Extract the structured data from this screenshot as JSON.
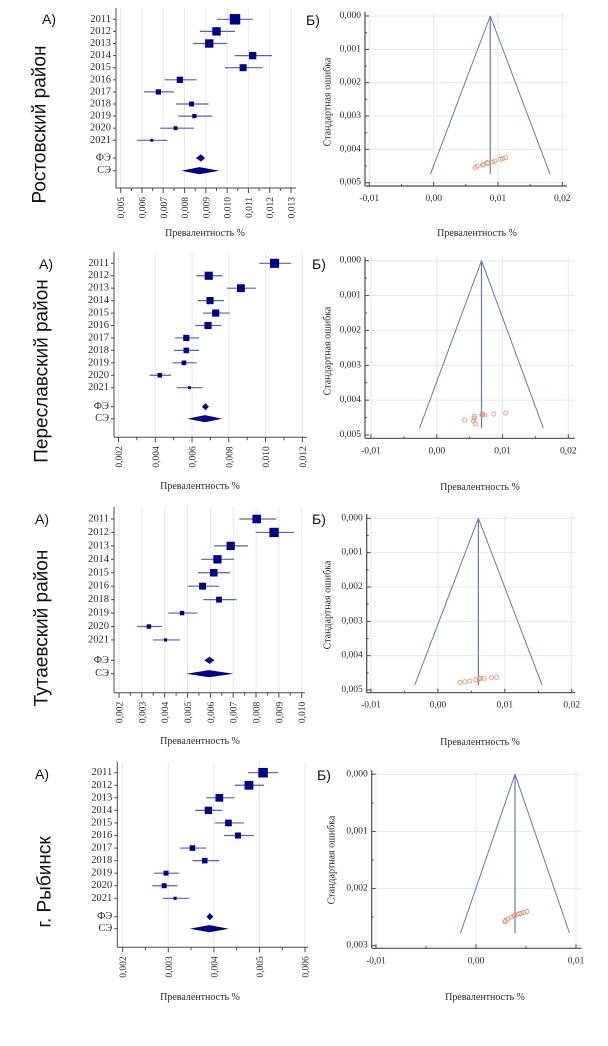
{
  "panels": [
    {
      "region_label": "Ростовский район",
      "label_a": "А)",
      "label_b": "Б)"
    },
    {
      "region_label": "Переславский район",
      "label_a": "А)",
      "label_b": "Б)"
    },
    {
      "region_label": "Тутаевский район",
      "label_a": "А)",
      "label_b": "Б)"
    },
    {
      "region_label": "г. Рыбинск",
      "label_a": "А)",
      "label_b": "Б)"
    }
  ],
  "colors": {
    "marker": "#00008c",
    "ci_line": "#5565a5",
    "funnel_line": "#6a78ad",
    "funnel_point": "#e29878",
    "grid": "#e6e7ee",
    "axis": "#4a4a4a"
  },
  "chart_data": [
    {
      "type": "scatter",
      "kind": "forest",
      "title": "",
      "xlabel": "Превалентность %",
      "ylabel": "",
      "xlim": [
        0.005,
        0.013
      ],
      "xticks": [
        0.005,
        0.006,
        0.007,
        0.008,
        0.009,
        0.01,
        0.011,
        0.012,
        0.013
      ],
      "xtick_labels": [
        "0,005",
        "0,006",
        "0,007",
        "0,008",
        "0,009",
        "0,010",
        "0,011",
        "0,012",
        "0,013"
      ],
      "grid": "vertical",
      "studies": [
        {
          "label": "2011",
          "estimate": 0.01037,
          "ci_low": 0.00952,
          "ci_high": 0.0112,
          "weight_pct": 22.7
        },
        {
          "label": "2012",
          "estimate": 0.0095,
          "ci_low": 0.00872,
          "ci_high": 0.01037,
          "weight_pct": 14.5
        },
        {
          "label": "2013",
          "estimate": 0.00916,
          "ci_low": 0.0084,
          "ci_high": 0.01,
          "weight_pct": 14.5
        },
        {
          "label": "2014",
          "estimate": 0.0112,
          "ci_low": 0.01035,
          "ci_high": 0.0121,
          "weight_pct": 11.1
        },
        {
          "label": "2015",
          "estimate": 0.01075,
          "ci_low": 0.0099,
          "ci_high": 0.01167,
          "weight_pct": 10.2
        },
        {
          "label": "2016",
          "estimate": 0.00778,
          "ci_low": 0.00706,
          "ci_high": 0.00857,
          "weight_pct": 8.2
        },
        {
          "label": "2017",
          "estimate": 0.00677,
          "ci_low": 0.0061,
          "ci_high": 0.0075,
          "weight_pct": 5.7
        },
        {
          "label": "2018",
          "estimate": 0.00833,
          "ci_low": 0.0076,
          "ci_high": 0.00913,
          "weight_pct": 5.0
        },
        {
          "label": "2019",
          "estimate": 0.00846,
          "ci_low": 0.0077,
          "ci_high": 0.00929,
          "weight_pct": 3.6
        },
        {
          "label": "2020",
          "estimate": 0.00758,
          "ci_low": 0.00686,
          "ci_high": 0.00844,
          "weight_pct": 3.1
        },
        {
          "label": "2021",
          "estimate": 0.00646,
          "ci_low": 0.00577,
          "ci_high": 0.00719,
          "weight_pct": 1.7
        }
      ],
      "pooled": [
        {
          "label": "ФЭ",
          "model": "fixed",
          "estimate": 0.00877,
          "ci_low": 0.00853,
          "ci_high": 0.00896
        },
        {
          "label": "СЭ",
          "model": "random",
          "estimate": 0.0087,
          "ci_low": 0.00785,
          "ci_high": 0.00963
        }
      ]
    },
    {
      "type": "scatter",
      "kind": "funnel",
      "title": "",
      "xlabel": "Превалентность %",
      "ylabel": "Стандартная ошибка",
      "xlim": [
        -0.01,
        0.02
      ],
      "ylim": [
        0,
        0.005
      ],
      "y_inverted": true,
      "xticks": [
        -0.01,
        0.0,
        0.01,
        0.02
      ],
      "xtick_labels": [
        "-0,01",
        "0,00",
        "0,01",
        "0,02"
      ],
      "yticks": [
        0,
        0.001,
        0.002,
        0.003,
        0.004,
        0.005
      ],
      "ytick_labels": [
        "0,000",
        "0,001",
        "0,002",
        "0,003",
        "0,004",
        "0,005"
      ],
      "grid": "both",
      "pooled_estimate": 0.0088,
      "se_max": 0.00474,
      "z": 1.96,
      "points": [
        {
          "label": "2011",
          "x": 0.01037,
          "se": 0.0043
        },
        {
          "label": "2012",
          "x": 0.0095,
          "se": 0.00435
        },
        {
          "label": "2013",
          "x": 0.00916,
          "se": 0.00438
        },
        {
          "label": "2014",
          "x": 0.0112,
          "se": 0.00425
        },
        {
          "label": "2015",
          "x": 0.01075,
          "se": 0.00428
        },
        {
          "label": "2016",
          "x": 0.00778,
          "se": 0.00445
        },
        {
          "label": "2017",
          "x": 0.00677,
          "se": 0.0045
        },
        {
          "label": "2018",
          "x": 0.00833,
          "se": 0.0044
        },
        {
          "label": "2019",
          "x": 0.00846,
          "se": 0.00442
        },
        {
          "label": "2020",
          "x": 0.00758,
          "se": 0.00447
        },
        {
          "label": "2021",
          "x": 0.00646,
          "se": 0.00455
        }
      ]
    },
    {
      "type": "scatter",
      "kind": "forest",
      "title": "",
      "xlabel": "Превалентность %",
      "ylabel": "",
      "xlim": [
        0.002,
        0.012
      ],
      "xticks": [
        0.002,
        0.004,
        0.006,
        0.008,
        0.01,
        0.012
      ],
      "xtick_labels": [
        "0,002",
        "0,004",
        "0,006",
        "0,008",
        "0,010",
        "0,012"
      ],
      "grid": "vertical",
      "studies": [
        {
          "label": "2011",
          "estimate": 0.01049,
          "ci_low": 0.00966,
          "ci_high": 0.01138,
          "weight_pct": 17.2
        },
        {
          "label": "2012",
          "estimate": 0.00691,
          "ci_low": 0.00624,
          "ci_high": 0.00766,
          "weight_pct": 13.7
        },
        {
          "label": "2013",
          "estimate": 0.00866,
          "ci_low": 0.00789,
          "ci_high": 0.00947,
          "weight_pct": 12.7
        },
        {
          "label": "2014",
          "estimate": 0.00698,
          "ci_low": 0.00631,
          "ci_high": 0.00773,
          "weight_pct": 10.6
        },
        {
          "label": "2015",
          "estimate": 0.00729,
          "ci_low": 0.0066,
          "ci_high": 0.00806,
          "weight_pct": 10.6
        },
        {
          "label": "2016",
          "estimate": 0.00687,
          "ci_low": 0.00618,
          "ci_high": 0.0076,
          "weight_pct": 10.6
        },
        {
          "label": "2017",
          "estimate": 0.00569,
          "ci_low": 0.00507,
          "ci_high": 0.00638,
          "weight_pct": 7.9
        },
        {
          "label": "2018",
          "estimate": 0.00569,
          "ci_low": 0.00502,
          "ci_high": 0.00638,
          "weight_pct": 6.5
        },
        {
          "label": "2019",
          "estimate": 0.00556,
          "ci_low": 0.00493,
          "ci_high": 0.00625,
          "weight_pct": 4.4
        },
        {
          "label": "2020",
          "estimate": 0.00425,
          "ci_low": 0.00369,
          "ci_high": 0.00487,
          "weight_pct": 4.4
        },
        {
          "label": "2021",
          "estimate": 0.00586,
          "ci_low": 0.00518,
          "ci_high": 0.00658,
          "weight_pct": 1.8
        }
      ],
      "pooled": [
        {
          "label": "ФЭ",
          "model": "fixed",
          "estimate": 0.00673,
          "ci_low": 0.00654,
          "ci_high": 0.00692
        },
        {
          "label": "СЭ",
          "model": "random",
          "estimate": 0.0067,
          "ci_low": 0.00575,
          "ci_high": 0.00764
        }
      ]
    },
    {
      "type": "scatter",
      "kind": "funnel",
      "title": "",
      "xlabel": "Превалентность %",
      "ylabel": "Стандартная ошибка",
      "xlim": [
        -0.01,
        0.02
      ],
      "ylim": [
        0,
        0.005
      ],
      "y_inverted": true,
      "xticks": [
        -0.01,
        0.0,
        0.01,
        0.02
      ],
      "xtick_labels": [
        "-0,01",
        "0,00",
        "0,01",
        "0,02"
      ],
      "yticks": [
        0,
        0.001,
        0.002,
        0.003,
        0.004,
        0.005
      ],
      "ytick_labels": [
        "0,000",
        "0,001",
        "0,002",
        "0,003",
        "0,004",
        "0,005"
      ],
      "grid": "both",
      "pooled_estimate": 0.0068,
      "se_max": 0.0048,
      "z": 1.96,
      "points": [
        {
          "label": "2011",
          "x": 0.01049,
          "se": 0.00437
        },
        {
          "label": "2012",
          "x": 0.00691,
          "se": 0.0044
        },
        {
          "label": "2013",
          "x": 0.00866,
          "se": 0.0044
        },
        {
          "label": "2014",
          "x": 0.00698,
          "se": 0.00441
        },
        {
          "label": "2015",
          "x": 0.00729,
          "se": 0.00443
        },
        {
          "label": "2016",
          "x": 0.00687,
          "se": 0.00442
        },
        {
          "label": "2017",
          "x": 0.00569,
          "se": 0.00447
        },
        {
          "label": "2018",
          "x": 0.00569,
          "se": 0.00452
        },
        {
          "label": "2019",
          "x": 0.00556,
          "se": 0.0046
        },
        {
          "label": "2020",
          "x": 0.00425,
          "se": 0.00457
        },
        {
          "label": "2021",
          "x": 0.00586,
          "se": 0.00468
        }
      ]
    },
    {
      "type": "scatter",
      "kind": "forest",
      "title": "",
      "xlabel": "Превалентность %",
      "ylabel": "",
      "xlim": [
        0.002,
        0.01
      ],
      "xticks": [
        0.002,
        0.003,
        0.004,
        0.005,
        0.006,
        0.007,
        0.008,
        0.009,
        0.01
      ],
      "xtick_labels": [
        "0,002",
        "0,003",
        "0,004",
        "0,005",
        "0,006",
        "0,007",
        "0,008",
        "0,009",
        "0,010"
      ],
      "grid": "vertical",
      "studies": [
        {
          "label": "2011",
          "estimate": 0.00803,
          "ci_low": 0.00727,
          "ci_high": 0.00888,
          "weight_pct": 15.2
        },
        {
          "label": "2012",
          "estimate": 0.00879,
          "ci_low": 0.00799,
          "ci_high": 0.00967,
          "weight_pct": 17.8
        },
        {
          "label": "2013",
          "estimate": 0.00689,
          "ci_low": 0.00616,
          "ci_high": 0.00765,
          "weight_pct": 14.1
        },
        {
          "label": "2014",
          "estimate": 0.00631,
          "ci_low": 0.0056,
          "ci_high": 0.00704,
          "weight_pct": 14.1
        },
        {
          "label": "2015",
          "estimate": 0.00615,
          "ci_low": 0.00546,
          "ci_high": 0.00686,
          "weight_pct": 11.7
        },
        {
          "label": "2016",
          "estimate": 0.00566,
          "ci_low": 0.00501,
          "ci_high": 0.00639,
          "weight_pct": 9.9
        },
        {
          "label": "2018",
          "estimate": 0.00638,
          "ci_low": 0.00569,
          "ci_high": 0.00715,
          "weight_pct": 7.1
        },
        {
          "label": "2019",
          "estimate": 0.00476,
          "ci_low": 0.00416,
          "ci_high": 0.00543,
          "weight_pct": 4.1
        },
        {
          "label": "2020",
          "estimate": 0.00331,
          "ci_low": 0.0028,
          "ci_high": 0.00388,
          "weight_pct": 4.1
        },
        {
          "label": "2021",
          "estimate": 0.00404,
          "ci_low": 0.00348,
          "ci_high": 0.00467,
          "weight_pct": 2.0
        }
      ],
      "pooled": [
        {
          "label": "ФЭ",
          "model": "fixed",
          "estimate": 0.00596,
          "ci_low": 0.00574,
          "ci_high": 0.00618
        },
        {
          "label": "СЭ",
          "model": "random",
          "estimate": 0.00594,
          "ci_low": 0.00495,
          "ci_high": 0.00701
        }
      ]
    },
    {
      "type": "scatter",
      "kind": "funnel",
      "title": "",
      "xlabel": "Превалентность %",
      "ylabel": "Стандартная ошибка",
      "xlim": [
        -0.01,
        0.02
      ],
      "ylim": [
        0,
        0.005
      ],
      "y_inverted": true,
      "xticks": [
        -0.01,
        0.0,
        0.01,
        0.02
      ],
      "xtick_labels": [
        "-0,01",
        "0,00",
        "0,01",
        "0,02"
      ],
      "yticks": [
        0,
        0.001,
        0.002,
        0.003,
        0.004,
        0.005
      ],
      "ytick_labels": [
        "0,000",
        "0,001",
        "0,002",
        "0,003",
        "0,004",
        "0,005"
      ],
      "grid": "both",
      "pooled_estimate": 0.00605,
      "se_max": 0.00486,
      "z": 1.96,
      "points": [
        {
          "label": "2011",
          "x": 0.00803,
          "se": 0.00464
        },
        {
          "label": "2012",
          "x": 0.00879,
          "se": 0.00463
        },
        {
          "label": "2013",
          "x": 0.00689,
          "se": 0.00466
        },
        {
          "label": "2014",
          "x": 0.00631,
          "se": 0.00465
        },
        {
          "label": "2015",
          "x": 0.00615,
          "se": 0.00468
        },
        {
          "label": "2016",
          "x": 0.00566,
          "se": 0.0047
        },
        {
          "label": "2018",
          "x": 0.00638,
          "se": 0.00466
        },
        {
          "label": "2019",
          "x": 0.00476,
          "se": 0.00474
        },
        {
          "label": "2020",
          "x": 0.00331,
          "se": 0.00478
        },
        {
          "label": "2021",
          "x": 0.00404,
          "se": 0.00476
        }
      ]
    },
    {
      "type": "scatter",
      "kind": "forest",
      "title": "",
      "xlabel": "Превалентность %",
      "ylabel": "",
      "xlim": [
        0.002,
        0.006
      ],
      "xticks": [
        0.002,
        0.003,
        0.004,
        0.005,
        0.006
      ],
      "xtick_labels": [
        "0,002",
        "0,003",
        "0,004",
        "0,005",
        "0,006"
      ],
      "grid": "vertical",
      "studies": [
        {
          "label": "2011",
          "estimate": 0.00508,
          "ci_low": 0.00475,
          "ci_high": 0.00541,
          "weight_pct": 18.7
        },
        {
          "label": "2012",
          "estimate": 0.00477,
          "ci_low": 0.00446,
          "ci_high": 0.0051,
          "weight_pct": 15.9
        },
        {
          "label": "2013",
          "estimate": 0.00412,
          "ci_low": 0.00383,
          "ci_high": 0.00445,
          "weight_pct": 12.3
        },
        {
          "label": "2014",
          "estimate": 0.00388,
          "ci_low": 0.00359,
          "ci_high": 0.00418,
          "weight_pct": 11.3
        },
        {
          "label": "2015",
          "estimate": 0.00432,
          "ci_low": 0.00402,
          "ci_high": 0.00466,
          "weight_pct": 9.2
        },
        {
          "label": "2016",
          "estimate": 0.00453,
          "ci_low": 0.00422,
          "ci_high": 0.00488,
          "weight_pct": 7.5
        },
        {
          "label": "2017",
          "estimate": 0.00353,
          "ci_low": 0.00326,
          "ci_high": 0.00383,
          "weight_pct": 6.5
        },
        {
          "label": "2018",
          "estimate": 0.0038,
          "ci_low": 0.00353,
          "ci_high": 0.00412,
          "weight_pct": 6.5
        },
        {
          "label": "2019",
          "estimate": 0.00295,
          "ci_low": 0.00269,
          "ci_high": 0.00324,
          "weight_pct": 5.1
        },
        {
          "label": "2020",
          "estimate": 0.00291,
          "ci_low": 0.00265,
          "ci_high": 0.0032,
          "weight_pct": 5.1
        },
        {
          "label": "2021",
          "estimate": 0.00315,
          "ci_low": 0.00288,
          "ci_high": 0.00345,
          "weight_pct": 2.1
        }
      ],
      "pooled": [
        {
          "label": "ФЭ",
          "model": "fixed",
          "estimate": 0.00391,
          "ci_low": 0.00384,
          "ci_high": 0.00399
        },
        {
          "label": "СЭ",
          "model": "random",
          "estimate": 0.0039,
          "ci_low": 0.00347,
          "ci_high": 0.00433
        }
      ]
    },
    {
      "type": "scatter",
      "kind": "funnel",
      "title": "",
      "xlabel": "Превалентность %",
      "ylabel": "Стандартная ошибка",
      "xlim": [
        -0.01,
        0.01
      ],
      "ylim": [
        0,
        0.003
      ],
      "y_inverted": true,
      "xticks": [
        -0.01,
        0.0,
        0.01
      ],
      "xtick_labels": [
        "-0,01",
        "0,00",
        "0,01"
      ],
      "yticks": [
        0,
        0.001,
        0.002,
        0.003
      ],
      "ytick_labels": [
        "0,000",
        "0,001",
        "0,002",
        "0,003"
      ],
      "grid": "both",
      "pooled_estimate": 0.0039,
      "se_max": 0.00278,
      "z": 1.96,
      "points": [
        {
          "label": "2011",
          "x": 0.00508,
          "se": 0.0024
        },
        {
          "label": "2012",
          "x": 0.00477,
          "se": 0.00242
        },
        {
          "label": "2013",
          "x": 0.00412,
          "se": 0.00245
        },
        {
          "label": "2014",
          "x": 0.00388,
          "se": 0.00247
        },
        {
          "label": "2015",
          "x": 0.00432,
          "se": 0.00244
        },
        {
          "label": "2016",
          "x": 0.00453,
          "se": 0.00243
        },
        {
          "label": "2017",
          "x": 0.00353,
          "se": 0.0025
        },
        {
          "label": "2018",
          "x": 0.0038,
          "se": 0.00248
        },
        {
          "label": "2019",
          "x": 0.00295,
          "se": 0.00256
        },
        {
          "label": "2020",
          "x": 0.00291,
          "se": 0.00258
        },
        {
          "label": "2021",
          "x": 0.00315,
          "se": 0.00254
        }
      ]
    }
  ]
}
